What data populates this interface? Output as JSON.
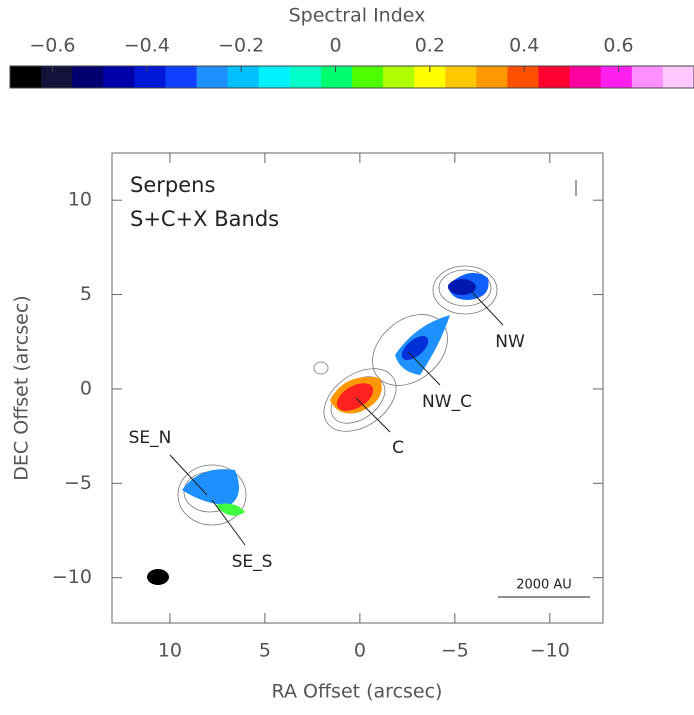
{
  "chart_data": {
    "type": "image",
    "colorbar": {
      "label": "Spectral Index",
      "clim": [
        -0.69,
        0.76
      ],
      "colors": [
        "#000000",
        "#12123a",
        "#000070",
        "#0000a8",
        "#0018d8",
        "#1040ff",
        "#1e90ff",
        "#00c0ff",
        "#00f0ff",
        "#00ffc8",
        "#00ff70",
        "#50ff00",
        "#b0ff00",
        "#ffff00",
        "#ffc800",
        "#ff9800",
        "#ff5000",
        "#ff0030",
        "#ff00a0",
        "#ff20f0",
        "#ff90ff",
        "#ffc8ff"
      ],
      "ticks": [
        {
          "value": -0.6,
          "label": "−0.6"
        },
        {
          "value": -0.4,
          "label": "−0.4"
        },
        {
          "value": -0.2,
          "label": "−0.2"
        },
        0,
        0.2,
        0.4,
        0.6
      ]
    },
    "xlabel": "RA Offset (arcsec)",
    "ylabel": "DEC Offset (arcsec)",
    "xlim": [
      13.05,
      -12.8
    ],
    "ylim": [
      -12.4,
      12.5
    ],
    "xticks": [
      10,
      5,
      0,
      {
        "value": -5,
        "label": "−5"
      },
      {
        "value": -10,
        "label": "−10"
      }
    ],
    "yticks": [
      {
        "value": -10,
        "label": "−10"
      },
      {
        "value": -5,
        "label": "−5"
      },
      0,
      5,
      10
    ],
    "annotations": [
      "Serpens",
      "S+C+X Bands",
      "NW",
      "NW_C",
      "C",
      "SE_N",
      "SE_S",
      "2000 AU"
    ]
  }
}
